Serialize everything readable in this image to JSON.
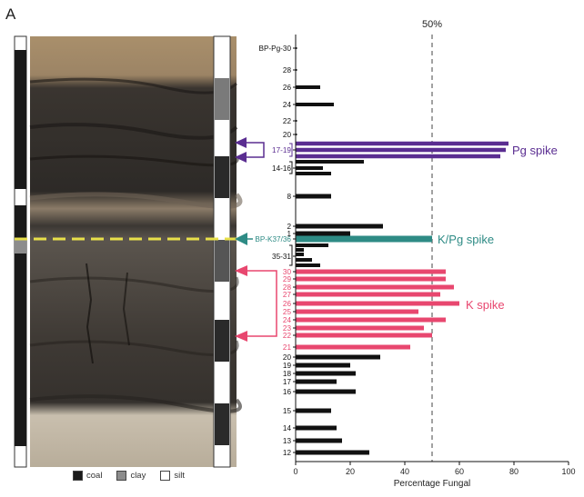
{
  "panel_label": "A",
  "legend": [
    {
      "label": "coal",
      "color": "#1a1a1a"
    },
    {
      "label": "clay",
      "color": "#8c8c8c"
    },
    {
      "label": "silt",
      "color": "#ffffff"
    }
  ],
  "colors": {
    "pg": "#5a2d91",
    "kpg": "#2e8b85",
    "k": "#e8476f",
    "black": "#111111",
    "boundary_line": "#e8e04a"
  },
  "chart_data": {
    "type": "bar",
    "orientation": "horizontal",
    "xlabel": "Percentage Fungal",
    "xlim": [
      0,
      100
    ],
    "xticks": [
      0,
      20,
      40,
      60,
      80,
      100
    ],
    "reference_line": {
      "value": 50,
      "label": "50%"
    },
    "annotations": [
      {
        "text": "Pg spike",
        "group": "pg"
      },
      {
        "text": "K/Pg spike",
        "group": "kpg"
      },
      {
        "text": "K spike",
        "group": "k"
      }
    ],
    "tick_labels": [
      {
        "label": "BP-Pg-30",
        "group": "black"
      },
      {
        "label": "28",
        "group": "black"
      },
      {
        "label": "26",
        "group": "black"
      },
      {
        "label": "24",
        "group": "black"
      },
      {
        "label": "22",
        "group": "black"
      },
      {
        "label": "20",
        "group": "black"
      },
      {
        "label": "17-19",
        "group": "pg"
      },
      {
        "label": "14-16",
        "group": "black"
      },
      {
        "label": "8",
        "group": "black"
      },
      {
        "label": "2",
        "group": "black"
      },
      {
        "label": "1",
        "group": "black"
      },
      {
        "label": "BP-K37/36",
        "group": "kpg"
      },
      {
        "label": "35-31",
        "group": "black"
      },
      {
        "label": "30",
        "group": "k"
      },
      {
        "label": "29",
        "group": "k"
      },
      {
        "label": "28",
        "group": "k"
      },
      {
        "label": "27",
        "group": "k"
      },
      {
        "label": "26",
        "group": "k"
      },
      {
        "label": "25",
        "group": "k"
      },
      {
        "label": "24",
        "group": "k"
      },
      {
        "label": "23",
        "group": "k"
      },
      {
        "label": "22",
        "group": "k"
      },
      {
        "label": "21",
        "group": "k"
      },
      {
        "label": "20",
        "group": "black"
      },
      {
        "label": "19",
        "group": "black"
      },
      {
        "label": "18",
        "group": "black"
      },
      {
        "label": "17",
        "group": "black"
      },
      {
        "label": "16",
        "group": "black"
      },
      {
        "label": "15",
        "group": "black"
      },
      {
        "label": "14",
        "group": "black"
      },
      {
        "label": "13",
        "group": "black"
      },
      {
        "label": "12",
        "group": "black"
      }
    ],
    "bars": [
      {
        "sample": "BP-Pg-30",
        "value": 0.5,
        "group": "black"
      },
      {
        "sample": "28",
        "value": 0.5,
        "group": "black"
      },
      {
        "sample": "26",
        "value": 9,
        "group": "black"
      },
      {
        "sample": "24",
        "value": 14,
        "group": "black"
      },
      {
        "sample": "22",
        "value": 0.5,
        "group": "black"
      },
      {
        "sample": "20",
        "value": 0.5,
        "group": "black"
      },
      {
        "sample": "19",
        "value": 78,
        "group": "pg"
      },
      {
        "sample": "18",
        "value": 77,
        "group": "pg"
      },
      {
        "sample": "17",
        "value": 75,
        "group": "pg"
      },
      {
        "sample": "16",
        "value": 25,
        "group": "black"
      },
      {
        "sample": "15",
        "value": 10,
        "group": "black"
      },
      {
        "sample": "14",
        "value": 13,
        "group": "black"
      },
      {
        "sample": "8",
        "value": 13,
        "group": "black"
      },
      {
        "sample": "2",
        "value": 32,
        "group": "black"
      },
      {
        "sample": "1",
        "value": 20,
        "group": "black"
      },
      {
        "sample": "BP-K37/36",
        "value": 50,
        "group": "kpg"
      },
      {
        "sample": "35",
        "value": 12,
        "group": "black"
      },
      {
        "sample": "34",
        "value": 3,
        "group": "black"
      },
      {
        "sample": "33",
        "value": 3,
        "group": "black"
      },
      {
        "sample": "32",
        "value": 6,
        "group": "black"
      },
      {
        "sample": "31",
        "value": 9,
        "group": "black"
      },
      {
        "sample": "30",
        "value": 55,
        "group": "k"
      },
      {
        "sample": "29",
        "value": 55,
        "group": "k"
      },
      {
        "sample": "28",
        "value": 58,
        "group": "k"
      },
      {
        "sample": "27",
        "value": 53,
        "group": "k"
      },
      {
        "sample": "26",
        "value": 60,
        "group": "k"
      },
      {
        "sample": "25",
        "value": 45,
        "group": "k"
      },
      {
        "sample": "24",
        "value": 55,
        "group": "k"
      },
      {
        "sample": "23",
        "value": 47,
        "group": "k"
      },
      {
        "sample": "22",
        "value": 50,
        "group": "k"
      },
      {
        "sample": "21",
        "value": 42,
        "group": "k"
      },
      {
        "sample": "20",
        "value": 31,
        "group": "black"
      },
      {
        "sample": "19",
        "value": 20,
        "group": "black"
      },
      {
        "sample": "18",
        "value": 22,
        "group": "black"
      },
      {
        "sample": "17",
        "value": 15,
        "group": "black"
      },
      {
        "sample": "16",
        "value": 22,
        "group": "black"
      },
      {
        "sample": "15",
        "value": 13,
        "group": "black"
      },
      {
        "sample": "14",
        "value": 15,
        "group": "black"
      },
      {
        "sample": "13",
        "value": 17,
        "group": "black"
      },
      {
        "sample": "12",
        "value": 27,
        "group": "black"
      }
    ]
  }
}
